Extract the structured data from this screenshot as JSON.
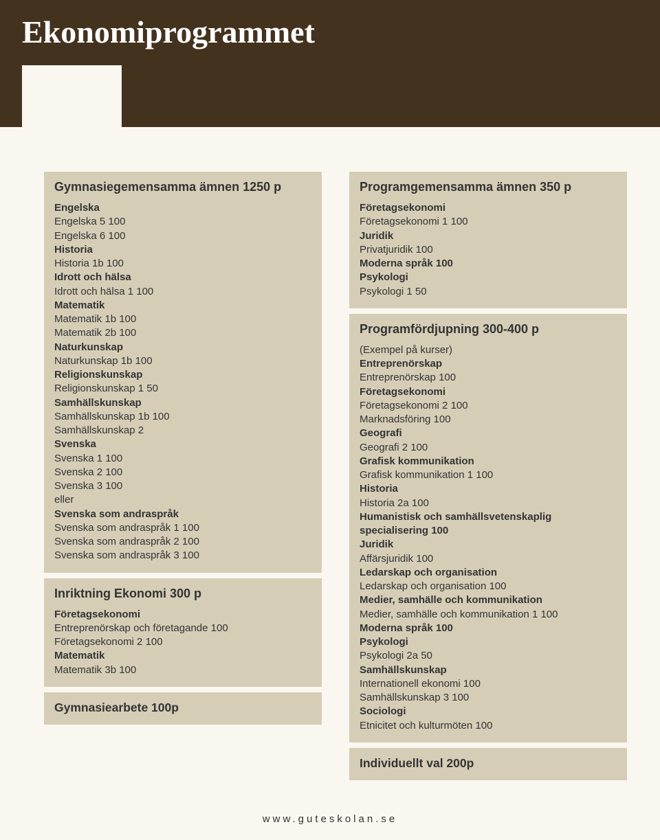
{
  "page": {
    "title": "Ekonomiprogrammet",
    "background_color": "#faf7f0",
    "header_band_color": "#43321e",
    "box_color": "#d6cdb7",
    "text_color": "#333333",
    "title_color": "#ffffff",
    "footer": "www.guteskolan.se"
  },
  "left": [
    {
      "title": "Gymnasiegemensamma ämnen 1250 p",
      "lines": [
        {
          "t": "subject",
          "v": "Engelska"
        },
        {
          "t": "course",
          "v": "Engelska 5 100"
        },
        {
          "t": "course",
          "v": "Engelska 6 100"
        },
        {
          "t": "subject",
          "v": "Historia"
        },
        {
          "t": "course",
          "v": "Historia 1b 100"
        },
        {
          "t": "subject",
          "v": "Idrott och hälsa"
        },
        {
          "t": "course",
          "v": "Idrott och hälsa 1 100"
        },
        {
          "t": "subject",
          "v": "Matematik"
        },
        {
          "t": "course",
          "v": "Matematik 1b 100"
        },
        {
          "t": "course",
          "v": "Matematik 2b 100"
        },
        {
          "t": "subject",
          "v": "Naturkunskap"
        },
        {
          "t": "course",
          "v": "Naturkunskap 1b 100"
        },
        {
          "t": "subject",
          "v": "Religionskunskap"
        },
        {
          "t": "course",
          "v": "Religionskunskap 1 50"
        },
        {
          "t": "subject",
          "v": "Samhällskunskap"
        },
        {
          "t": "course",
          "v": "Samhällskunskap 1b 100"
        },
        {
          "t": "course",
          "v": "Samhällskunskap 2"
        },
        {
          "t": "subject",
          "v": "Svenska"
        },
        {
          "t": "course",
          "v": "Svenska 1 100"
        },
        {
          "t": "course",
          "v": "Svenska 2 100"
        },
        {
          "t": "course",
          "v": "Svenska 3 100"
        },
        {
          "t": "course",
          "v": "eller"
        },
        {
          "t": "subject",
          "v": "Svenska som andraspråk"
        },
        {
          "t": "course",
          "v": "Svenska som andraspråk 1 100"
        },
        {
          "t": "course",
          "v": "Svenska som andraspråk 2 100"
        },
        {
          "t": "course",
          "v": "Svenska som andraspråk 3 100"
        }
      ]
    },
    {
      "title": "Inriktning Ekonomi 300 p",
      "lines": [
        {
          "t": "subject",
          "v": "Företagsekonomi"
        },
        {
          "t": "course",
          "v": "Entreprenörskap och företagande 100"
        },
        {
          "t": "course",
          "v": "Företagsekonomi 2 100"
        },
        {
          "t": "subject",
          "v": "Matematik"
        },
        {
          "t": "course",
          "v": "Matematik 3b 100"
        }
      ]
    },
    {
      "title_only": "Gymnasiearbete 100p"
    }
  ],
  "right": [
    {
      "title": "Programgemensamma ämnen 350 p",
      "lines": [
        {
          "t": "subject",
          "v": "Företagsekonomi"
        },
        {
          "t": "course",
          "v": "Företagsekonomi 1 100"
        },
        {
          "t": "subject",
          "v": "Juridik"
        },
        {
          "t": "course",
          "v": "Privatjuridik 100"
        },
        {
          "t": "subject",
          "v": "Moderna språk 100"
        },
        {
          "t": "subject",
          "v": "Psykologi"
        },
        {
          "t": "course",
          "v": "Psykologi 1 50"
        }
      ]
    },
    {
      "title": "Programfördjupning 300-400 p",
      "lines": [
        {
          "t": "note",
          "v": "(Exempel på kurser)"
        },
        {
          "t": "subject",
          "v": "Entreprenörskap"
        },
        {
          "t": "course",
          "v": "Entreprenörskap 100"
        },
        {
          "t": "subject",
          "v": "Företagsekonomi"
        },
        {
          "t": "course",
          "v": "Företagsekonomi 2 100"
        },
        {
          "t": "course",
          "v": "Marknadsföring 100"
        },
        {
          "t": "subject",
          "v": "Geografi"
        },
        {
          "t": "course",
          "v": "Geografi 2 100"
        },
        {
          "t": "subject",
          "v": "Grafisk kommunikation"
        },
        {
          "t": "course",
          "v": "Grafisk kommunikation 1 100"
        },
        {
          "t": "subject",
          "v": "Historia"
        },
        {
          "t": "course",
          "v": "Historia 2a 100"
        },
        {
          "t": "subject",
          "v": "Humanistisk och samhällsvetenskaplig specialisering 100"
        },
        {
          "t": "subject",
          "v": "Juridik"
        },
        {
          "t": "course",
          "v": "Affärsjuridik 100"
        },
        {
          "t": "subject",
          "v": "Ledarskap och organisation"
        },
        {
          "t": "course",
          "v": "Ledarskap och organisation 100"
        },
        {
          "t": "subject",
          "v": "Medier, samhälle och kommunikation"
        },
        {
          "t": "course",
          "v": "Medier, samhälle och kommunikation 1 100"
        },
        {
          "t": "subject",
          "v": "Moderna språk 100"
        },
        {
          "t": "subject",
          "v": "Psykologi"
        },
        {
          "t": "course",
          "v": "Psykologi 2a 50"
        },
        {
          "t": "subject",
          "v": "Samhällskunskap"
        },
        {
          "t": "course",
          "v": "Internationell ekonomi 100"
        },
        {
          "t": "course",
          "v": "Samhällskunskap 3 100"
        },
        {
          "t": "subject",
          "v": "Sociologi"
        },
        {
          "t": "course",
          "v": "Etnicitet och kulturmöten 100"
        }
      ]
    },
    {
      "title_only": "Individuellt val 200p"
    }
  ]
}
